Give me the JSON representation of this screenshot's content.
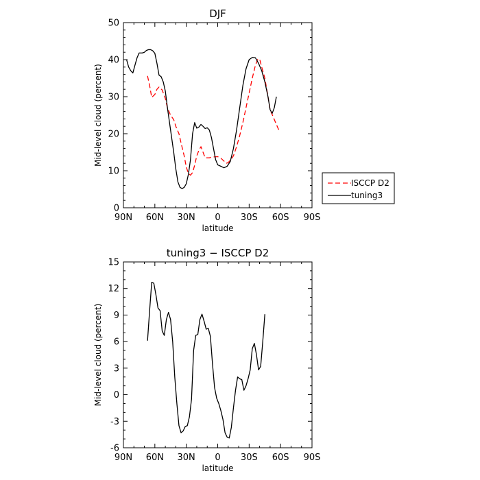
{
  "chart_data": [
    {
      "type": "line",
      "title": "DJF",
      "xlabel": "latitude",
      "ylabel": "Mid-level cloud (percent)",
      "x_tick_labels": [
        "90N",
        "60N",
        "30N",
        "0",
        "30S",
        "60S",
        "90S"
      ],
      "x_ticks": [
        90,
        60,
        30,
        0,
        -30,
        -60,
        -90
      ],
      "xlim": [
        90,
        -90
      ],
      "ylim": [
        0,
        50
      ],
      "y_ticks": [
        0,
        10,
        20,
        30,
        40,
        50
      ],
      "legend_position": "right, outside plot",
      "series": [
        {
          "name": "ISCCP D2",
          "color": "#ff0000",
          "style": "dashed",
          "points": [
            [
              67,
              35.6
            ],
            [
              65,
              33
            ],
            [
              63,
              29.8
            ],
            [
              60,
              30.6
            ],
            [
              58,
              32
            ],
            [
              56,
              32.6
            ],
            [
              53,
              31.8
            ],
            [
              50,
              29.5
            ],
            [
              48,
              27
            ],
            [
              45,
              25
            ],
            [
              42,
              23.8
            ],
            [
              40,
              22
            ],
            [
              37,
              20
            ],
            [
              35,
              17.5
            ],
            [
              32,
              14
            ],
            [
              30,
              11
            ],
            [
              28,
              9.3
            ],
            [
              26,
              8.8
            ],
            [
              24,
              9.5
            ],
            [
              22,
              11.5
            ],
            [
              20,
              14
            ],
            [
              18,
              15.5
            ],
            [
              16,
              16.5
            ],
            [
              14,
              15
            ],
            [
              12,
              13.5
            ],
            [
              8,
              13.5
            ],
            [
              5,
              13.7
            ],
            [
              0,
              13.8
            ],
            [
              -3,
              13.4
            ],
            [
              -6,
              12.6
            ],
            [
              -8,
              12
            ],
            [
              -10,
              12.2
            ],
            [
              -12,
              12.8
            ],
            [
              -15,
              14
            ],
            [
              -18,
              16.5
            ],
            [
              -21,
              19.5
            ],
            [
              -24,
              23
            ],
            [
              -27,
              27
            ],
            [
              -30,
              31
            ],
            [
              -33,
              35
            ],
            [
              -36,
              38.5
            ],
            [
              -38,
              40
            ],
            [
              -40,
              40.2
            ],
            [
              -42,
              38
            ],
            [
              -45,
              35
            ],
            [
              -48,
              30
            ],
            [
              -50,
              26.5
            ],
            [
              -53,
              24.5
            ],
            [
              -56,
              22.5
            ],
            [
              -58,
              21.2
            ],
            [
              -60,
              21
            ]
          ]
        },
        {
          "name": "tuning3",
          "color": "#000000",
          "style": "solid",
          "points": [
            [
              87,
              40
            ],
            [
              85,
              38
            ],
            [
              83,
              37
            ],
            [
              81,
              36.4
            ],
            [
              79,
              38.5
            ],
            [
              77,
              40.5
            ],
            [
              75,
              41.8
            ],
            [
              72,
              41.8
            ],
            [
              70,
              42
            ],
            [
              68,
              42.5
            ],
            [
              66,
              42.7
            ],
            [
              64,
              42.7
            ],
            [
              62,
              42.4
            ],
            [
              60,
              41.7
            ],
            [
              58,
              39
            ],
            [
              56,
              35.8
            ],
            [
              54,
              35.4
            ],
            [
              52,
              34
            ],
            [
              50,
              31.5
            ],
            [
              48,
              27
            ],
            [
              45,
              21
            ],
            [
              42,
              15
            ],
            [
              40,
              10.5
            ],
            [
              38,
              7
            ],
            [
              36,
              5.5
            ],
            [
              34,
              5.2
            ],
            [
              32,
              5.5
            ],
            [
              30,
              6.5
            ],
            [
              28,
              9
            ],
            [
              26,
              13
            ],
            [
              24,
              20
            ],
            [
              22,
              23
            ],
            [
              20,
              21.5
            ],
            [
              18,
              21.8
            ],
            [
              16,
              22.5
            ],
            [
              14,
              22
            ],
            [
              12,
              21.4
            ],
            [
              10,
              21.6
            ],
            [
              8,
              21
            ],
            [
              6,
              19
            ],
            [
              4,
              16
            ],
            [
              2,
              13
            ],
            [
              0,
              11.6
            ],
            [
              -3,
              11.2
            ],
            [
              -6,
              10.8
            ],
            [
              -9,
              11.2
            ],
            [
              -12,
              12.5
            ],
            [
              -15,
              16
            ],
            [
              -18,
              21
            ],
            [
              -21,
              27
            ],
            [
              -24,
              33
            ],
            [
              -27,
              37.5
            ],
            [
              -30,
              40
            ],
            [
              -33,
              40.6
            ],
            [
              -36,
              40.5
            ],
            [
              -39,
              39
            ],
            [
              -42,
              37
            ],
            [
              -45,
              34
            ],
            [
              -48,
              30
            ],
            [
              -50,
              26.5
            ],
            [
              -52,
              25.5
            ],
            [
              -54,
              27
            ],
            [
              -56,
              30
            ]
          ]
        }
      ]
    },
    {
      "type": "line",
      "title": "tuning3 − ISCCP D2",
      "xlabel": "latitude",
      "ylabel": "Mid-level cloud (percent)",
      "x_tick_labels": [
        "90N",
        "60N",
        "30N",
        "0",
        "30S",
        "60S",
        "90S"
      ],
      "x_ticks": [
        90,
        60,
        30,
        0,
        -30,
        -60,
        -90
      ],
      "xlim": [
        90,
        -90
      ],
      "ylim": [
        -6,
        15
      ],
      "y_ticks": [
        -6,
        -3,
        0,
        3,
        6,
        9,
        12,
        15
      ],
      "series": [
        {
          "color": "#000000",
          "style": "solid",
          "points": [
            [
              67,
              6.1
            ],
            [
              65,
              9.5
            ],
            [
              63,
              12.7
            ],
            [
              61,
              12.6
            ],
            [
              59,
              11.3
            ],
            [
              57,
              9.8
            ],
            [
              55,
              9.5
            ],
            [
              53,
              7.2
            ],
            [
              51,
              6.7
            ],
            [
              49,
              8.5
            ],
            [
              47,
              9.3
            ],
            [
              45,
              8.5
            ],
            [
              43,
              6
            ],
            [
              41,
              2
            ],
            [
              39,
              -1
            ],
            [
              37,
              -3.5
            ],
            [
              35,
              -4.3
            ],
            [
              33,
              -4.1
            ],
            [
              31,
              -3.6
            ],
            [
              29,
              -3.5
            ],
            [
              27,
              -2.5
            ],
            [
              25,
              -0.5
            ],
            [
              23,
              5
            ],
            [
              21,
              6.7
            ],
            [
              19,
              6.8
            ],
            [
              17,
              8.5
            ],
            [
              15,
              9.1
            ],
            [
              13,
              8.3
            ],
            [
              11,
              7.4
            ],
            [
              9,
              7.5
            ],
            [
              7,
              6.6
            ],
            [
              5,
              3.5
            ],
            [
              3,
              0.8
            ],
            [
              1,
              -0.4
            ],
            [
              -1,
              -1
            ],
            [
              -3,
              -1.8
            ],
            [
              -5,
              -2.8
            ],
            [
              -7,
              -4.3
            ],
            [
              -9,
              -4.8
            ],
            [
              -11,
              -4.9
            ],
            [
              -13,
              -3.7
            ],
            [
              -15,
              -1.5
            ],
            [
              -17,
              0.5
            ],
            [
              -19,
              2
            ],
            [
              -21,
              1.8
            ],
            [
              -23,
              1.7
            ],
            [
              -25,
              0.5
            ],
            [
              -27,
              1
            ],
            [
              -29,
              1.8
            ],
            [
              -31,
              2.8
            ],
            [
              -33,
              5.2
            ],
            [
              -35,
              5.8
            ],
            [
              -37,
              4.5
            ],
            [
              -39,
              2.8
            ],
            [
              -41,
              3.2
            ],
            [
              -43,
              6
            ],
            [
              -45,
              9.1
            ]
          ]
        }
      ]
    }
  ]
}
